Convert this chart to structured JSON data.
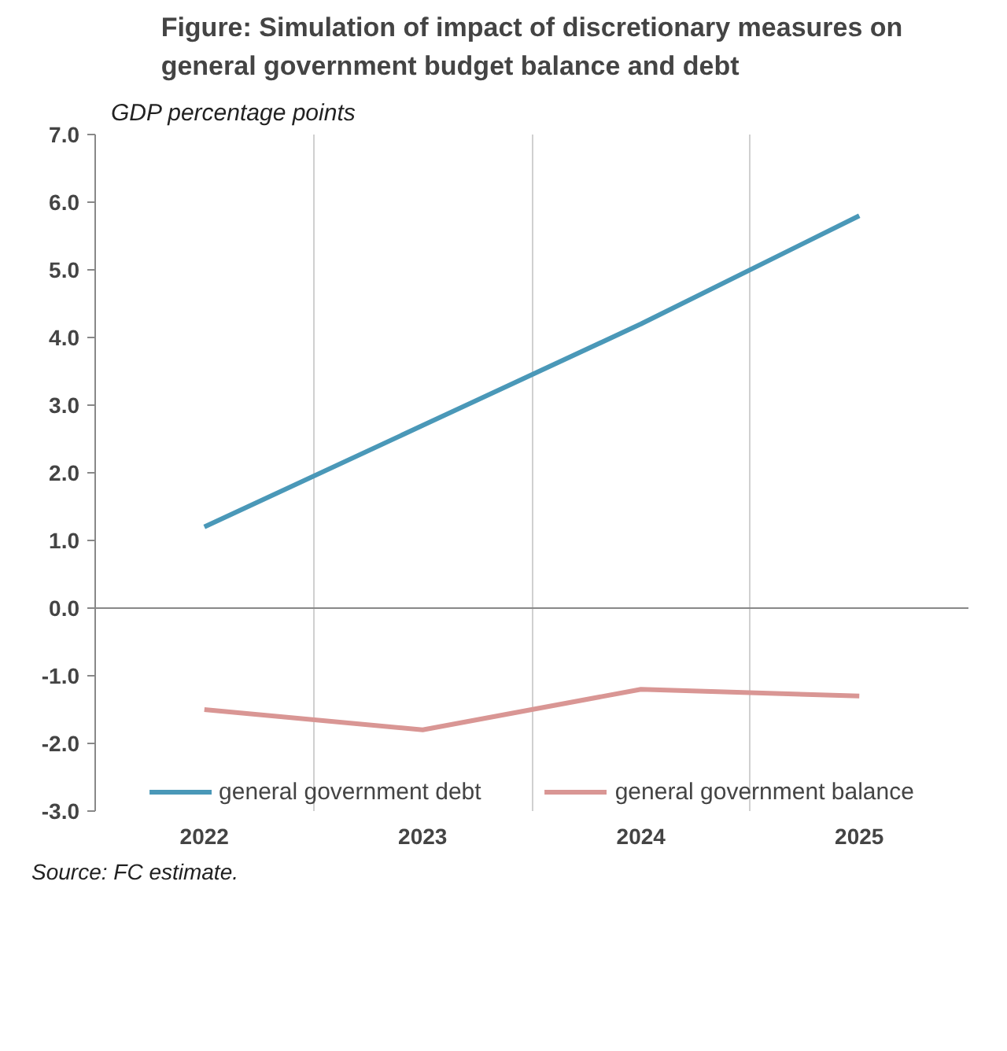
{
  "chart_data": {
    "type": "line",
    "title": "Figure: Simulation of impact of discretionary measures on general government budget balance and debt",
    "ylabel": "GDP percentage points",
    "categories": [
      "2022",
      "2023",
      "2024",
      "2025"
    ],
    "series": [
      {
        "name": "general government debt",
        "color": "#4a98b8",
        "values": [
          1.2,
          2.7,
          4.2,
          5.8
        ]
      },
      {
        "name": "general government balance",
        "color": "#d99694",
        "values": [
          -1.5,
          -1.8,
          -1.2,
          -1.3
        ]
      }
    ],
    "ylim": [
      -3.0,
      7.0
    ],
    "yticks": [
      {
        "value": -3,
        "label": "-3.0"
      },
      {
        "value": -2,
        "label": "-2.0"
      },
      {
        "value": -1,
        "label": "-1.0"
      },
      {
        "value": 0,
        "label": "0.0"
      },
      {
        "value": 1,
        "label": "1.0"
      },
      {
        "value": 2,
        "label": "2.0"
      },
      {
        "value": 3,
        "label": "3.0"
      },
      {
        "value": 4,
        "label": "4.0"
      },
      {
        "value": 5,
        "label": "5.0"
      },
      {
        "value": 6,
        "label": "6.0"
      },
      {
        "value": 7,
        "label": "7.0"
      }
    ],
    "grid": "x",
    "legend": "bottom",
    "marker": "none",
    "line_style": "solid",
    "annotations": [
      "Source: FC estimate."
    ]
  }
}
